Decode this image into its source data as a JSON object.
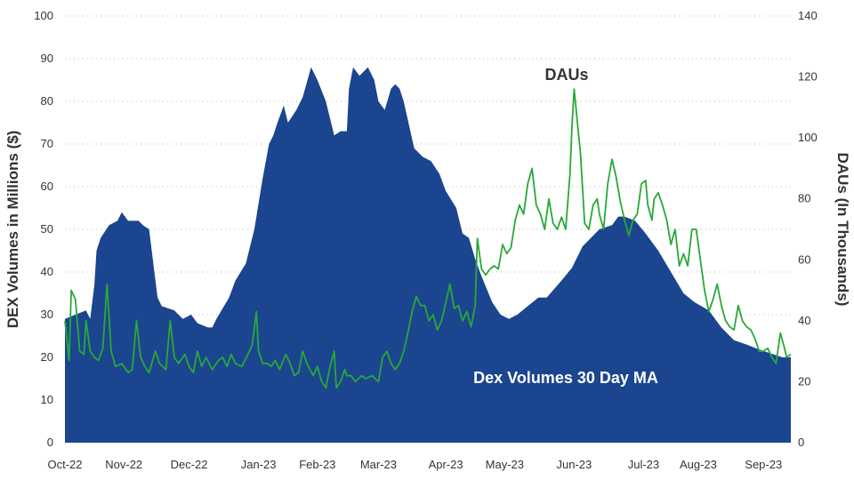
{
  "chart_data": {
    "type": "area",
    "title": "",
    "ylabel_left": "DEX Volumes in Millions ($)",
    "ylabel_right": "DAUs (In Thousands)",
    "ylim_left": [
      0,
      100
    ],
    "ylim_right": [
      0,
      140
    ],
    "yticks_left": [
      "0",
      "10",
      "20",
      "30",
      "40",
      "50",
      "60",
      "70",
      "80",
      "90",
      "100"
    ],
    "yticks_right": [
      "0",
      "20",
      "40",
      "60",
      "80",
      "100",
      "120",
      "140"
    ],
    "x_range_days": [
      0,
      345
    ],
    "x_ticks": [
      {
        "label": "Oct-22",
        "day": 0
      },
      {
        "label": "Nov-22",
        "day": 28
      },
      {
        "label": "Dec-22",
        "day": 59
      },
      {
        "label": "Jan-23",
        "day": 92
      },
      {
        "label": "Feb-23",
        "day": 120
      },
      {
        "label": "Mar-23",
        "day": 149
      },
      {
        "label": "Apr-23",
        "day": 181
      },
      {
        "label": "May-23",
        "day": 209
      },
      {
        "label": "Jun-23",
        "day": 242
      },
      {
        "label": "Jul-23",
        "day": 275
      },
      {
        "label": "Aug-23",
        "day": 301
      },
      {
        "label": "Sep-23",
        "day": 332
      }
    ],
    "series": [
      {
        "name": "Dex Volumes 30 Day MA",
        "axis": "left",
        "color": "#1b458f",
        "points": [
          [
            0,
            29
          ],
          [
            5,
            30
          ],
          [
            10,
            31
          ],
          [
            12,
            29
          ],
          [
            14,
            37
          ],
          [
            15,
            45
          ],
          [
            17,
            48
          ],
          [
            21,
            51
          ],
          [
            25,
            52
          ],
          [
            27,
            54
          ],
          [
            30,
            52
          ],
          [
            35,
            52
          ],
          [
            37,
            51
          ],
          [
            40,
            50
          ],
          [
            44,
            34
          ],
          [
            46,
            32
          ],
          [
            52,
            31
          ],
          [
            56,
            29
          ],
          [
            60,
            30
          ],
          [
            63,
            28
          ],
          [
            68,
            27
          ],
          [
            70,
            27
          ],
          [
            72,
            29
          ],
          [
            78,
            34
          ],
          [
            81,
            38
          ],
          [
            86,
            42
          ],
          [
            90,
            50
          ],
          [
            94,
            62
          ],
          [
            97,
            70
          ],
          [
            99,
            72
          ],
          [
            101,
            75
          ],
          [
            104,
            79
          ],
          [
            106,
            75
          ],
          [
            110,
            78
          ],
          [
            113,
            81
          ],
          [
            117,
            88
          ],
          [
            120,
            85
          ],
          [
            124,
            80
          ],
          [
            128,
            72
          ],
          [
            131,
            73
          ],
          [
            134,
            73
          ],
          [
            135,
            83
          ],
          [
            137,
            88
          ],
          [
            140,
            86
          ],
          [
            144,
            88
          ],
          [
            147,
            85
          ],
          [
            149,
            80
          ],
          [
            152,
            78
          ],
          [
            155,
            83
          ],
          [
            157,
            84
          ],
          [
            159,
            83
          ],
          [
            161,
            80
          ],
          [
            166,
            69
          ],
          [
            170,
            67
          ],
          [
            174,
            66
          ],
          [
            178,
            63
          ],
          [
            181,
            59
          ],
          [
            186,
            55
          ],
          [
            189,
            49
          ],
          [
            192,
            48
          ],
          [
            195,
            43
          ],
          [
            198,
            39
          ],
          [
            203,
            33
          ],
          [
            207,
            30
          ],
          [
            211,
            29
          ],
          [
            215,
            30
          ],
          [
            220,
            32
          ],
          [
            225,
            34
          ],
          [
            229,
            34
          ],
          [
            236,
            38
          ],
          [
            241,
            41
          ],
          [
            246,
            46
          ],
          [
            250,
            48
          ],
          [
            254,
            50
          ],
          [
            260,
            51
          ],
          [
            263,
            53
          ],
          [
            266,
            53
          ],
          [
            271,
            52
          ],
          [
            276,
            49
          ],
          [
            282,
            45
          ],
          [
            288,
            40
          ],
          [
            294,
            35
          ],
          [
            299,
            33
          ],
          [
            306,
            31
          ],
          [
            312,
            27
          ],
          [
            318,
            24
          ],
          [
            324,
            23
          ],
          [
            329,
            22
          ],
          [
            335,
            21
          ],
          [
            341,
            20
          ],
          [
            345,
            20
          ]
        ]
      },
      {
        "name": "DAUs",
        "axis": "right",
        "color": "#29a838",
        "points": [
          [
            0,
            40
          ],
          [
            2,
            27
          ],
          [
            3,
            50
          ],
          [
            5,
            47
          ],
          [
            7,
            30
          ],
          [
            9,
            29
          ],
          [
            10,
            40
          ],
          [
            12,
            30
          ],
          [
            14,
            28
          ],
          [
            16,
            27
          ],
          [
            18,
            31
          ],
          [
            20,
            52
          ],
          [
            22,
            30
          ],
          [
            24,
            25
          ],
          [
            27,
            26
          ],
          [
            30,
            23
          ],
          [
            32,
            24
          ],
          [
            34,
            40
          ],
          [
            36,
            28
          ],
          [
            38,
            25
          ],
          [
            40,
            23
          ],
          [
            43,
            30
          ],
          [
            45,
            26
          ],
          [
            48,
            24
          ],
          [
            50,
            40
          ],
          [
            52,
            28
          ],
          [
            54,
            26
          ],
          [
            57,
            29
          ],
          [
            59,
            25
          ],
          [
            61,
            23
          ],
          [
            63,
            30
          ],
          [
            65,
            25
          ],
          [
            67,
            28
          ],
          [
            70,
            24
          ],
          [
            73,
            27
          ],
          [
            75,
            28
          ],
          [
            77,
            25
          ],
          [
            79,
            29
          ],
          [
            81,
            26
          ],
          [
            84,
            25
          ],
          [
            87,
            29
          ],
          [
            89,
            32
          ],
          [
            91,
            43
          ],
          [
            92,
            30
          ],
          [
            94,
            26
          ],
          [
            96,
            26
          ],
          [
            98,
            25
          ],
          [
            100,
            27
          ],
          [
            102,
            24
          ],
          [
            105,
            29
          ],
          [
            107,
            26
          ],
          [
            109,
            22
          ],
          [
            111,
            23
          ],
          [
            113,
            30
          ],
          [
            115,
            26
          ],
          [
            118,
            22
          ],
          [
            120,
            25
          ],
          [
            122,
            20
          ],
          [
            124,
            18
          ],
          [
            126,
            25
          ],
          [
            128,
            30
          ],
          [
            129,
            18
          ],
          [
            131,
            20
          ],
          [
            133,
            24
          ],
          [
            134,
            22
          ],
          [
            136,
            22
          ],
          [
            138,
            20
          ],
          [
            141,
            22
          ],
          [
            143,
            21
          ],
          [
            146,
            22
          ],
          [
            149,
            20
          ],
          [
            151,
            28
          ],
          [
            153,
            30
          ],
          [
            155,
            26
          ],
          [
            157,
            24
          ],
          [
            159,
            26
          ],
          [
            161,
            30
          ],
          [
            163,
            36
          ],
          [
            165,
            43
          ],
          [
            167,
            48
          ],
          [
            169,
            45
          ],
          [
            171,
            45
          ],
          [
            173,
            40
          ],
          [
            175,
            42
          ],
          [
            177,
            37
          ],
          [
            179,
            40
          ],
          [
            181,
            46
          ],
          [
            183,
            52
          ],
          [
            185,
            44
          ],
          [
            187,
            45
          ],
          [
            189,
            40
          ],
          [
            191,
            43
          ],
          [
            193,
            38
          ],
          [
            195,
            45
          ],
          [
            196,
            67
          ],
          [
            198,
            57
          ],
          [
            200,
            55
          ],
          [
            202,
            57
          ],
          [
            204,
            58
          ],
          [
            206,
            57
          ],
          [
            208,
            65
          ],
          [
            210,
            62
          ],
          [
            212,
            64
          ],
          [
            214,
            73
          ],
          [
            216,
            78
          ],
          [
            218,
            75
          ],
          [
            220,
            85
          ],
          [
            222,
            90
          ],
          [
            224,
            78
          ],
          [
            226,
            75
          ],
          [
            228,
            70
          ],
          [
            230,
            80
          ],
          [
            232,
            72
          ],
          [
            234,
            70
          ],
          [
            236,
            74
          ],
          [
            238,
            70
          ],
          [
            240,
            88
          ],
          [
            241,
            104
          ],
          [
            242,
            116
          ],
          [
            244,
            102
          ],
          [
            245,
            95
          ],
          [
            247,
            72
          ],
          [
            249,
            70
          ],
          [
            251,
            78
          ],
          [
            253,
            80
          ],
          [
            254,
            75
          ],
          [
            256,
            70
          ],
          [
            258,
            85
          ],
          [
            260,
            93
          ],
          [
            262,
            87
          ],
          [
            264,
            79
          ],
          [
            266,
            73
          ],
          [
            268,
            68
          ],
          [
            270,
            73
          ],
          [
            272,
            75
          ],
          [
            274,
            85
          ],
          [
            276,
            86
          ],
          [
            277,
            78
          ],
          [
            279,
            73
          ],
          [
            280,
            80
          ],
          [
            282,
            82
          ],
          [
            284,
            78
          ],
          [
            286,
            73
          ],
          [
            288,
            65
          ],
          [
            290,
            70
          ],
          [
            292,
            58
          ],
          [
            294,
            62
          ],
          [
            296,
            58
          ],
          [
            298,
            70
          ],
          [
            300,
            70
          ],
          [
            302,
            60
          ],
          [
            304,
            50
          ],
          [
            306,
            43
          ],
          [
            308,
            47
          ],
          [
            310,
            52
          ],
          [
            312,
            45
          ],
          [
            314,
            40
          ],
          [
            316,
            38
          ],
          [
            318,
            37
          ],
          [
            320,
            45
          ],
          [
            322,
            40
          ],
          [
            324,
            38
          ],
          [
            326,
            37
          ],
          [
            328,
            34
          ],
          [
            330,
            30
          ],
          [
            332,
            30
          ],
          [
            334,
            31
          ],
          [
            336,
            28
          ],
          [
            338,
            26
          ],
          [
            340,
            36
          ],
          [
            342,
            31
          ],
          [
            343,
            28
          ],
          [
            345,
            29
          ]
        ]
      }
    ],
    "annotations": [
      {
        "text": "DAUs",
        "series": "DAUs"
      },
      {
        "text": "Dex Volumes 30 Day MA",
        "series": "Dex Volumes 30 Day MA"
      }
    ],
    "grid": true,
    "legend": "none"
  }
}
